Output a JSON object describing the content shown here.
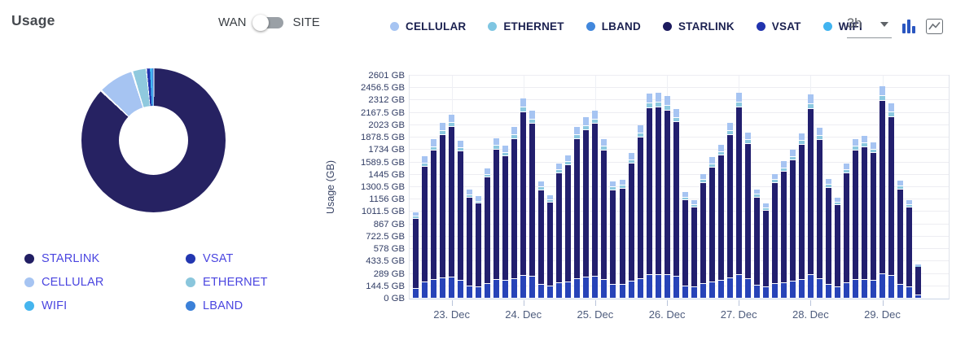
{
  "header": {
    "title": "Usage",
    "toggle": {
      "left_label": "WAN",
      "right_label": "SITE",
      "state": "left"
    },
    "legend": [
      {
        "label": "CELLULAR",
        "color": "#a6c4f2"
      },
      {
        "label": "ETHERNET",
        "color": "#7fc6e2"
      },
      {
        "label": "LBAND",
        "color": "#4187dc"
      },
      {
        "label": "STARLINK",
        "color": "#1c1a5e"
      },
      {
        "label": "VSAT",
        "color": "#2133ae"
      },
      {
        "label": "WIFI",
        "color": "#41b4f0"
      }
    ],
    "interval_select": {
      "value": "3h"
    },
    "chart_icon_color": "#2a56c0"
  },
  "donut": {
    "type": "pie",
    "slices": [
      {
        "label": "STARLINK",
        "pct": 87.1,
        "color": "#262262"
      },
      {
        "label": "CELLULAR",
        "pct": 8.1,
        "color": "#a6c4f2"
      },
      {
        "label": "ETHERNET",
        "pct": 3.3,
        "color": "#8fc9de"
      },
      {
        "label": "VSAT",
        "pct": 0.7,
        "color": "#2133ae"
      },
      {
        "label": "WIFI",
        "pct": 0.5,
        "color": "#41b4f0"
      },
      {
        "label": "LBAND",
        "pct": 0.3,
        "color": "#4187dc"
      }
    ],
    "legend": [
      {
        "label": "STARLINK",
        "color": "#211e63"
      },
      {
        "label": "VSAT",
        "color": "#2236b0"
      },
      {
        "label": "CELLULAR",
        "color": "#a6c4f2"
      },
      {
        "label": "ETHERNET",
        "color": "#8ac6dc"
      },
      {
        "label": "WIFI",
        "color": "#45b5ee"
      },
      {
        "label": "LBAND",
        "color": "#3b80d8"
      }
    ]
  },
  "chart_data": {
    "type": "bar",
    "stacked": true,
    "ylabel": "Usage (GB)",
    "ylim": [
      0,
      2601
    ],
    "ytick_step": 144.5,
    "ytick_labels": [
      "0 GB",
      "144.5 GB",
      "289 GB",
      "433.5 GB",
      "578 GB",
      "722.5 GB",
      "867 GB",
      "1011.5 GB",
      "1156 GB",
      "1300.5 GB",
      "1445 GB",
      "1589.5 GB",
      "1734 GB",
      "1878.5 GB",
      "2023 GB",
      "2167.5 GB",
      "2312 GB",
      "2456.5 GB",
      "2601 GB"
    ],
    "x_tick_labels": [
      "23. Dec",
      "24. Dec",
      "25. Dec",
      "26. Dec",
      "27. Dec",
      "28. Dec",
      "29. Dec"
    ],
    "x_tick_bar_indices": [
      4,
      12,
      20,
      28,
      36,
      44,
      52
    ],
    "interval": "3h",
    "grid": true,
    "series_order_bottom_to_top": [
      "WIFI",
      "VSAT",
      "STARLINK",
      "ETHERNET",
      "CELLULAR"
    ],
    "series": [
      {
        "name": "WIFI",
        "color": "#41b4f0",
        "values": [
          10,
          10,
          10,
          10,
          10,
          10,
          10,
          10,
          10,
          10,
          10,
          10,
          10,
          10,
          10,
          10,
          10,
          10,
          10,
          10,
          10,
          10,
          10,
          10,
          10,
          10,
          10,
          10,
          10,
          10,
          10,
          10,
          10,
          10,
          10,
          10,
          10,
          10,
          10,
          10,
          10,
          10,
          10,
          10,
          10,
          10,
          10,
          10,
          10,
          10,
          10,
          10,
          10,
          10,
          10,
          10,
          5
        ]
      },
      {
        "name": "VSAT",
        "color": "#2743b8",
        "values": [
          116,
          191,
          214,
          236,
          247,
          212,
          146,
          137,
          175,
          215,
          205,
          230,
          269,
          252,
          157,
          139,
          182,
          193,
          230,
          243,
          252,
          214,
          157,
          159,
          195,
          232,
          275,
          276,
          271,
          255,
          143,
          132,
          167,
          190,
          206,
          236,
          276,
          223,
          147,
          128,
          167,
          184,
          200,
          222,
          274,
          229,
          160,
          136,
          182,
          214,
          218,
          210,
          285,
          262,
          158,
          132,
          46
        ]
      },
      {
        "name": "STARLINK",
        "color": "#221f6e",
        "values": [
          818,
          1350,
          1513,
          1669,
          1752,
          1502,
          1030,
          970,
          1235,
          1522,
          1452,
          1628,
          1906,
          1789,
          1108,
          981,
          1284,
          1361,
          1628,
          1722,
          1789,
          1518,
          1108,
          1124,
          1378,
          1645,
          1947,
          1956,
          1924,
          1804,
          1005,
          933,
          1182,
          1341,
          1461,
          1669,
          1956,
          1579,
          1034,
          898,
          1182,
          1300,
          1410,
          1571,
          1939,
          1619,
          1133,
          956,
          1284,
          1518,
          1546,
          1485,
          2017,
          1858,
          1116,
          933,
          323
        ]
      },
      {
        "name": "ETHERNET",
        "color": "#8cc8e0",
        "values": [
          23,
          38,
          43,
          47,
          49,
          42,
          29,
          27,
          35,
          43,
          41,
          46,
          54,
          50,
          31,
          28,
          36,
          39,
          46,
          49,
          50,
          43,
          31,
          32,
          39,
          46,
          55,
          55,
          54,
          51,
          29,
          26,
          33,
          38,
          41,
          47,
          55,
          45,
          29,
          26,
          33,
          37,
          40,
          44,
          55,
          46,
          32,
          27,
          36,
          43,
          44,
          42,
          57,
          52,
          32,
          26,
          9
        ]
      },
      {
        "name": "CELLULAR",
        "color": "#a6c4f2",
        "values": [
          43,
          71,
          80,
          88,
          92,
          79,
          55,
          51,
          65,
          80,
          77,
          86,
          101,
          94,
          59,
          52,
          68,
          72,
          86,
          91,
          94,
          80,
          59,
          60,
          73,
          87,
          103,
          103,
          101,
          95,
          53,
          49,
          63,
          71,
          77,
          88,
          103,
          83,
          55,
          48,
          63,
          69,
          75,
          83,
          102,
          86,
          60,
          51,
          68,
          80,
          82,
          78,
          106,
          98,
          59,
          49,
          17
        ]
      }
    ]
  }
}
